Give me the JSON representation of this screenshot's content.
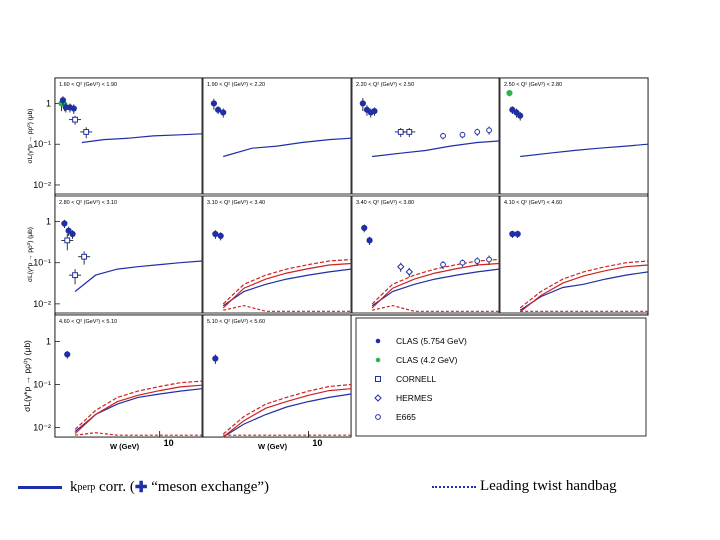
{
  "chart_data": {
    "type": "scatter",
    "xlabel": "W (GeV)",
    "x_tick_label": "10",
    "y_tick_labels": [
      "1",
      "10⁻¹",
      "10⁻²"
    ],
    "ylabel_rows": [
      "σL(γ*p → pρ⁰) (μb)",
      "σL(γ*p → pρ⁰) (μb)",
      "σL(γ*p → pρ⁰) (μb)"
    ],
    "xlim": [
      1.8,
      20
    ],
    "ylim": [
      0.006,
      3
    ],
    "yscale": "log",
    "xscale": "log",
    "legend": {
      "placement": "bottom-right panel",
      "entries": [
        {
          "name": "CLAS (5.754 GeV)",
          "marker": "filled-circle",
          "color": "#1f2fa8"
        },
        {
          "name": "CLAS (4.2 GeV)",
          "marker": "filled-circle",
          "color": "#2db34a"
        },
        {
          "name": "CORNELL",
          "marker": "open-square",
          "color": "#1f2fa8"
        },
        {
          "name": "HERMES",
          "marker": "open-diamond",
          "color": "#1f2fa8"
        },
        {
          "name": "E665",
          "marker": "open-circle",
          "color": "#1f2fa8"
        }
      ]
    },
    "panels": [
      {
        "title": "1.60 < Q² (GeV²) < 1.90",
        "points": [
          {
            "s": "CLAS (4.2 GeV)",
            "x": 2.0,
            "y": 1.0,
            "e": 0.35
          },
          {
            "s": "CLAS (4.2 GeV)",
            "x": 2.1,
            "y": 0.95,
            "e": 0.3
          },
          {
            "s": "CLAS (5.754 GeV)",
            "x": 2.05,
            "y": 1.2,
            "e": 0.3
          },
          {
            "s": "CLAS (5.754 GeV)",
            "x": 2.15,
            "y": 0.8,
            "e": 0.2
          },
          {
            "s": "CLAS (5.754 GeV)",
            "x": 2.3,
            "y": 0.8,
            "e": 0.2
          },
          {
            "s": "CLAS (5.754 GeV)",
            "x": 2.45,
            "y": 0.75,
            "e": 0.2
          },
          {
            "s": "CORNELL",
            "x": 2.5,
            "y": 0.4,
            "e": 0.1
          },
          {
            "s": "CORNELL",
            "x": 3.0,
            "y": 0.2,
            "e": 0.06
          }
        ],
        "model": [
          [
            2.8,
            0.11
          ],
          [
            4,
            0.13
          ],
          [
            6,
            0.14
          ],
          [
            9,
            0.16
          ],
          [
            14,
            0.17
          ],
          [
            20,
            0.18
          ]
        ],
        "handbag": []
      },
      {
        "title": "1.90 < Q² (GeV²) < 2.20",
        "points": [
          {
            "s": "CLAS (5.754 GeV)",
            "x": 2.15,
            "y": 1.0,
            "e": 0.3
          },
          {
            "s": "CLAS (5.754 GeV)",
            "x": 2.3,
            "y": 0.7,
            "e": 0.15
          },
          {
            "s": "CLAS (5.754 GeV)",
            "x": 2.5,
            "y": 0.6,
            "e": 0.15
          }
        ],
        "model": [
          [
            2.5,
            0.05
          ],
          [
            4,
            0.08
          ],
          [
            6,
            0.09
          ],
          [
            9,
            0.11
          ],
          [
            14,
            0.13
          ],
          [
            20,
            0.14
          ]
        ],
        "handbag": []
      },
      {
        "title": "2.20 < Q² (GeV²) < 2.50",
        "points": [
          {
            "s": "CLAS (5.754 GeV)",
            "x": 2.15,
            "y": 1.0,
            "e": 0.35
          },
          {
            "s": "CLAS (5.754 GeV)",
            "x": 2.3,
            "y": 0.7,
            "e": 0.2
          },
          {
            "s": "CLAS (5.754 GeV)",
            "x": 2.45,
            "y": 0.6,
            "e": 0.15
          },
          {
            "s": "CLAS (5.754 GeV)",
            "x": 2.6,
            "y": 0.65,
            "e": 0.15
          },
          {
            "s": "CORNELL",
            "x": 4.0,
            "y": 0.2,
            "e": 0.05
          },
          {
            "s": "CORNELL",
            "x": 4.6,
            "y": 0.2,
            "e": 0.05
          },
          {
            "s": "E665",
            "x": 8.0,
            "y": 0.16,
            "e": 0.03
          },
          {
            "s": "E665",
            "x": 11.0,
            "y": 0.17,
            "e": 0.03
          },
          {
            "s": "E665",
            "x": 14.0,
            "y": 0.2,
            "e": 0.04
          },
          {
            "s": "E665",
            "x": 17.0,
            "y": 0.22,
            "e": 0.05
          }
        ],
        "model": [
          [
            2.5,
            0.05
          ],
          [
            4,
            0.06
          ],
          [
            6,
            0.07
          ],
          [
            9,
            0.09
          ],
          [
            14,
            0.11
          ],
          [
            20,
            0.12
          ]
        ],
        "handbag": []
      },
      {
        "title": "2.50 < Q² (GeV²) < 2.80",
        "points": [
          {
            "s": "CLAS (4.2 GeV)",
            "x": 2.1,
            "y": 1.8,
            "e": 0.3
          },
          {
            "s": "CLAS (5.754 GeV)",
            "x": 2.2,
            "y": 0.7,
            "e": 0.15
          },
          {
            "s": "CLAS (5.754 GeV)",
            "x": 2.35,
            "y": 0.6,
            "e": 0.15
          },
          {
            "s": "CLAS (5.754 GeV)",
            "x": 2.5,
            "y": 0.5,
            "e": 0.12
          }
        ],
        "model": [
          [
            2.5,
            0.05
          ],
          [
            4,
            0.06
          ],
          [
            6,
            0.07
          ],
          [
            9,
            0.08
          ],
          [
            14,
            0.09
          ],
          [
            20,
            0.1
          ]
        ],
        "handbag": []
      },
      {
        "title": "2.80 < Q² (GeV²) < 3.10",
        "points": [
          {
            "s": "CLAS (5.754 GeV)",
            "x": 2.1,
            "y": 0.9,
            "e": 0.2
          },
          {
            "s": "CLAS (5.754 GeV)",
            "x": 2.25,
            "y": 0.6,
            "e": 0.15
          },
          {
            "s": "CLAS (5.754 GeV)",
            "x": 2.4,
            "y": 0.5,
            "e": 0.12
          },
          {
            "s": "CORNELL",
            "x": 2.2,
            "y": 0.35,
            "e": 0.15
          },
          {
            "s": "CORNELL",
            "x": 2.9,
            "y": 0.14,
            "e": 0.05
          },
          {
            "s": "CORNELL",
            "x": 2.5,
            "y": 0.05,
            "e": 0.02
          }
        ],
        "model": [
          [
            2.5,
            0.02
          ],
          [
            3.5,
            0.05
          ],
          [
            5,
            0.07
          ],
          [
            7,
            0.08
          ],
          [
            10,
            0.09
          ],
          [
            14,
            0.1
          ],
          [
            20,
            0.11
          ]
        ],
        "handbag": []
      },
      {
        "title": "3.10 < Q² (GeV²) < 3.40",
        "points": [
          {
            "s": "CLAS (5.754 GeV)",
            "x": 2.2,
            "y": 0.5,
            "e": 0.12
          },
          {
            "s": "CLAS (5.754 GeV)",
            "x": 2.4,
            "y": 0.45,
            "e": 0.1
          }
        ],
        "model": [
          [
            2.5,
            0.009
          ],
          [
            3.5,
            0.02
          ],
          [
            5,
            0.03
          ],
          [
            7,
            0.04
          ],
          [
            10,
            0.05
          ],
          [
            14,
            0.06
          ],
          [
            20,
            0.07
          ]
        ],
        "handbag": [
          [
            2.5,
            0.01
          ],
          [
            3.5,
            0.03
          ],
          [
            5,
            0.05
          ],
          [
            7,
            0.07
          ],
          [
            10,
            0.09
          ],
          [
            14,
            0.11
          ],
          [
            20,
            0.12
          ]
        ]
      },
      {
        "title": "3.40 < Q² (GeV²) < 3.80",
        "points": [
          {
            "s": "CLAS (5.754 GeV)",
            "x": 2.2,
            "y": 0.7,
            "e": 0.15
          },
          {
            "s": "CLAS (5.754 GeV)",
            "x": 2.4,
            "y": 0.35,
            "e": 0.08
          },
          {
            "s": "HERMES",
            "x": 4.0,
            "y": 0.08,
            "e": 0.02
          },
          {
            "s": "HERMES",
            "x": 4.6,
            "y": 0.06,
            "e": 0.015
          },
          {
            "s": "E665",
            "x": 8.0,
            "y": 0.09,
            "e": 0.02
          },
          {
            "s": "E665",
            "x": 11.0,
            "y": 0.1,
            "e": 0.02
          },
          {
            "s": "E665",
            "x": 14.0,
            "y": 0.11,
            "e": 0.025
          },
          {
            "s": "E665",
            "x": 17.0,
            "y": 0.12,
            "e": 0.03
          }
        ],
        "model": [
          [
            2.5,
            0.009
          ],
          [
            3.5,
            0.02
          ],
          [
            5,
            0.03
          ],
          [
            7,
            0.04
          ],
          [
            10,
            0.05
          ],
          [
            14,
            0.06
          ],
          [
            20,
            0.07
          ]
        ],
        "handbag": [
          [
            2.5,
            0.01
          ],
          [
            3.5,
            0.03
          ],
          [
            5,
            0.05
          ],
          [
            7,
            0.07
          ],
          [
            10,
            0.09
          ],
          [
            14,
            0.11
          ],
          [
            20,
            0.12
          ]
        ]
      },
      {
        "title": "4.10 < Q² (GeV²) < 4.60",
        "points": [
          {
            "s": "CLAS (5.754 GeV)",
            "x": 2.2,
            "y": 0.5,
            "e": 0.1
          },
          {
            "s": "CLAS (5.754 GeV)",
            "x": 2.4,
            "y": 0.5,
            "e": 0.1
          }
        ],
        "model": [
          [
            2.5,
            0.007
          ],
          [
            3.5,
            0.015
          ],
          [
            5,
            0.025
          ],
          [
            7,
            0.03
          ],
          [
            10,
            0.04
          ],
          [
            14,
            0.05
          ],
          [
            20,
            0.06
          ]
        ],
        "handbag": [
          [
            2.5,
            0.008
          ],
          [
            3.5,
            0.02
          ],
          [
            5,
            0.04
          ],
          [
            7,
            0.06
          ],
          [
            10,
            0.08
          ],
          [
            14,
            0.1
          ],
          [
            20,
            0.11
          ]
        ]
      },
      {
        "title": "4.60 < Q² (GeV²) < 5.10",
        "points": [
          {
            "s": "CLAS (5.754 GeV)",
            "x": 2.2,
            "y": 0.5,
            "e": 0.1
          }
        ],
        "model": [
          [
            2.5,
            0.008
          ],
          [
            3.5,
            0.02
          ],
          [
            5,
            0.035
          ],
          [
            7,
            0.05
          ],
          [
            10,
            0.06
          ],
          [
            14,
            0.07
          ],
          [
            20,
            0.08
          ]
        ],
        "handbag": [
          [
            2.5,
            0.009
          ],
          [
            3.5,
            0.025
          ],
          [
            5,
            0.05
          ],
          [
            7,
            0.07
          ],
          [
            10,
            0.09
          ],
          [
            14,
            0.11
          ],
          [
            20,
            0.12
          ]
        ]
      },
      {
        "title": "5.10 < Q² (GeV²) < 5.60",
        "points": [
          {
            "s": "CLAS (5.754 GeV)",
            "x": 2.2,
            "y": 0.4,
            "e": 0.1
          }
        ],
        "model": [
          [
            2.5,
            0.006
          ],
          [
            3.5,
            0.012
          ],
          [
            5,
            0.02
          ],
          [
            7,
            0.03
          ],
          [
            10,
            0.04
          ],
          [
            14,
            0.05
          ],
          [
            20,
            0.06
          ]
        ],
        "handbag": [
          [
            2.5,
            0.007
          ],
          [
            3.5,
            0.018
          ],
          [
            5,
            0.035
          ],
          [
            7,
            0.05
          ],
          [
            10,
            0.07
          ],
          [
            14,
            0.09
          ],
          [
            20,
            0.1
          ]
        ]
      }
    ]
  },
  "caption": {
    "left_prefix": "k",
    "left_sub": "perp",
    "left_mid": " corr. (",
    "left_plus": "✚",
    "left_suffix": " “meson exchange”)",
    "right": "Leading twist handbag"
  },
  "colors": {
    "model": "#1f2fa8",
    "handbag": "#cc2222",
    "clas42": "#2db34a",
    "marker": "#1f2fa8"
  }
}
